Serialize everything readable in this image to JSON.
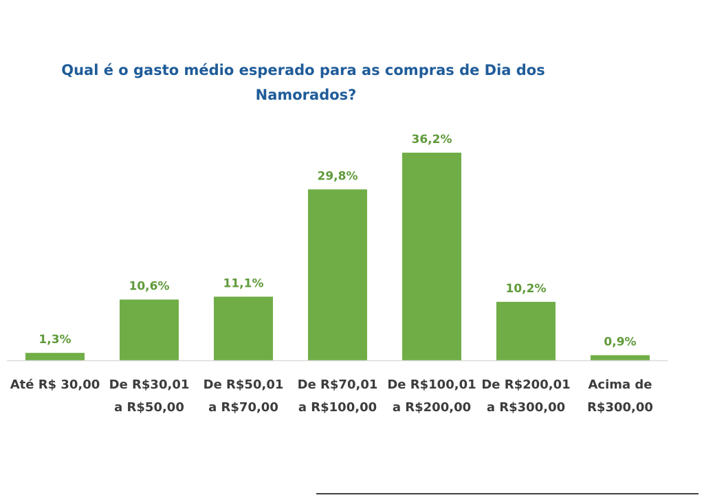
{
  "chart_data": {
    "type": "bar",
    "title_lines": [
      "Qual é o gasto médio esperado para as compras de Dia dos",
      "Namorados?"
    ],
    "categories": [
      [
        "Até R$ 30,00"
      ],
      [
        "De R$30,01",
        "a R$50,00"
      ],
      [
        "De R$50,01",
        "a R$70,00"
      ],
      [
        "De R$70,01",
        "a R$100,00"
      ],
      [
        "De R$100,01",
        "a R$200,00"
      ],
      [
        "De R$200,01",
        "a R$300,00"
      ],
      [
        "Acima de",
        "R$300,00"
      ]
    ],
    "values": [
      1.3,
      10.6,
      11.1,
      29.8,
      36.2,
      10.2,
      0.9
    ],
    "value_labels": [
      "1,3%",
      "10,6%",
      "11,1%",
      "29,8%",
      "36,2%",
      "10,2%",
      "0,9%"
    ],
    "ylim": [
      0,
      36.2
    ],
    "grid": false,
    "legend": "none",
    "colors": {
      "bar": "#70ad47",
      "title": "#1f5c99",
      "value_label": "#5f9a3a",
      "axis": "#d9d9d9",
      "category_label": "#3c3c3c"
    }
  }
}
